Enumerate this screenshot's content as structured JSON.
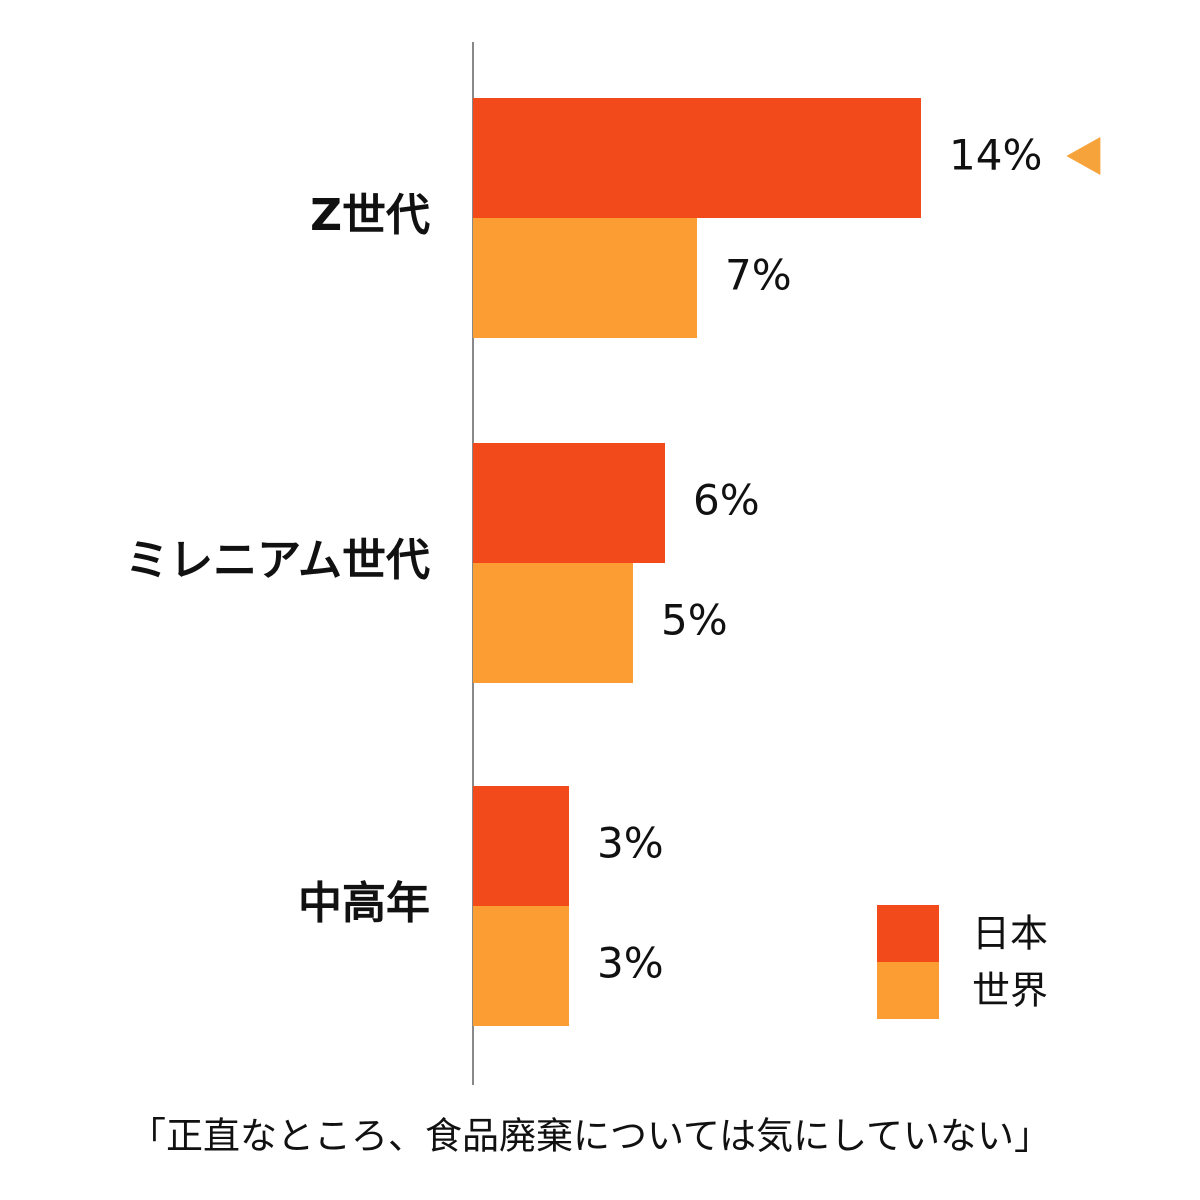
{
  "chart_data": {
    "type": "bar",
    "orientation": "horizontal",
    "caption": "「正直なところ、食品廃棄については気にしていない」",
    "categories": [
      "Z世代",
      "ミレニアム世代",
      "中高年"
    ],
    "series": [
      {
        "name": "日本",
        "color": "#f24a1a",
        "values": [
          14,
          6,
          3
        ],
        "value_labels": [
          "14%",
          "6%",
          "3%"
        ]
      },
      {
        "name": "世界",
        "color": "#fb9d33",
        "values": [
          7,
          5,
          3
        ],
        "value_labels": [
          "7%",
          "5%",
          "3%"
        ]
      }
    ],
    "xlim": [
      0,
      22
    ],
    "highlight_color": "#f5a33a"
  }
}
